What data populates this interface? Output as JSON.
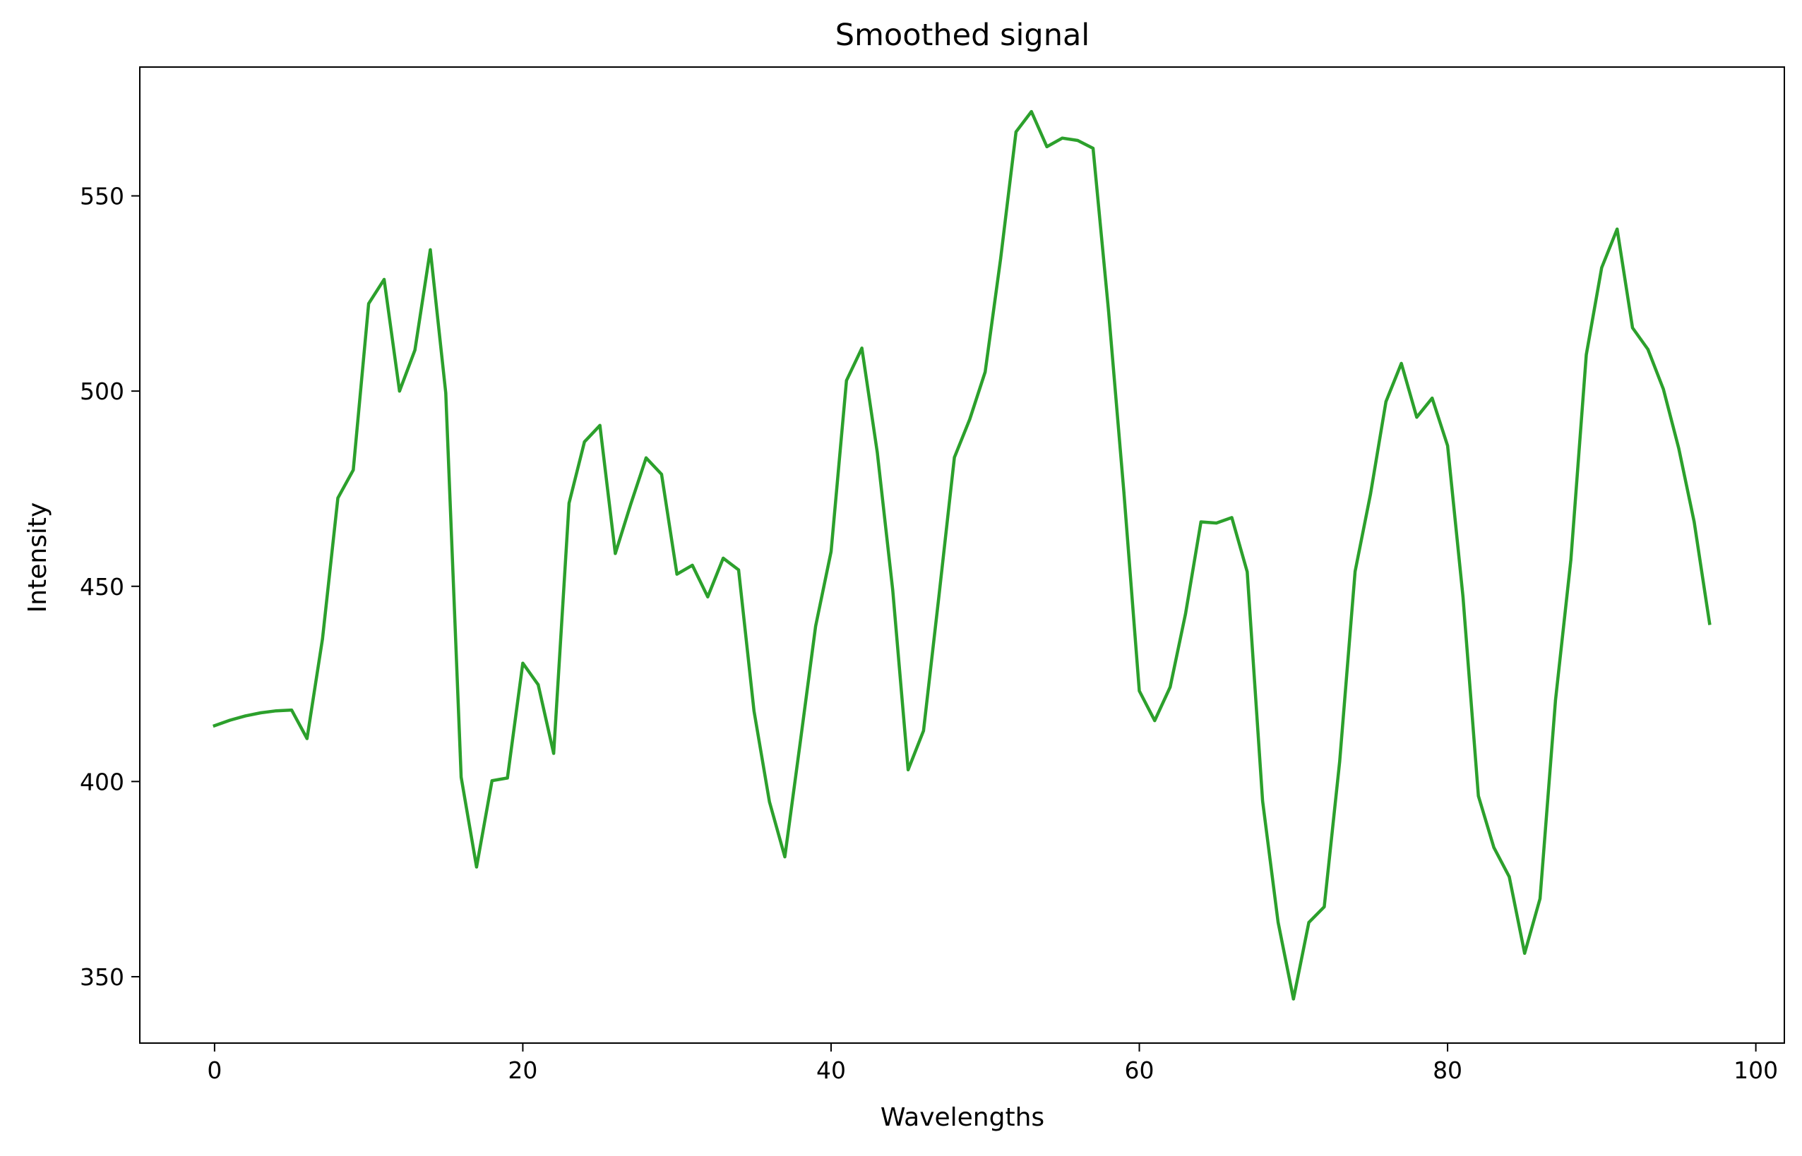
{
  "chart_data": {
    "type": "line",
    "title": "Smoothed signal",
    "xlabel": "Wavelengths",
    "ylabel": "Intensity",
    "xlim": [
      -4.85,
      101.85
    ],
    "ylim": [
      333,
      583
    ],
    "xticks": [
      0,
      20,
      40,
      60,
      80,
      100
    ],
    "yticks": [
      350,
      400,
      450,
      500,
      550
    ],
    "grid": false,
    "line_color": "#2ca02c",
    "series": [
      {
        "x": [
          0,
          1,
          2,
          3,
          4,
          5,
          6,
          7,
          8,
          9,
          10,
          11,
          12,
          13,
          14,
          15,
          16,
          17,
          18,
          19,
          20,
          21,
          22,
          23,
          24,
          25,
          26,
          27,
          28,
          29,
          30,
          31,
          32,
          33,
          34,
          35,
          36,
          37,
          38,
          39,
          40,
          41,
          42,
          43,
          44,
          45,
          46,
          47,
          48,
          49,
          50,
          51,
          52,
          53,
          54,
          55,
          56,
          57,
          58,
          59,
          60,
          61,
          62,
          63,
          64,
          65,
          66,
          67,
          68,
          69,
          70,
          71,
          72,
          73,
          74,
          75,
          76,
          77,
          78,
          79,
          80,
          81,
          82,
          83,
          84,
          85,
          86,
          87,
          88,
          89,
          90,
          91,
          92,
          93,
          94,
          95,
          96,
          97
        ],
        "values": [
          414.3,
          415.7,
          416.8,
          417.6,
          418.1,
          418.3,
          411,
          436.5,
          472.6,
          479.8,
          522.4,
          528.6,
          500,
          510.5,
          536.2,
          499.5,
          401.1,
          378.1,
          400.2,
          400.9,
          430.3,
          424.8,
          407.2,
          471.3,
          487,
          491.2,
          458.4,
          471,
          482.9,
          478.7,
          453.1,
          455.4,
          447.3,
          457.2,
          454.2,
          418.1,
          394.8,
          380.7,
          410,
          439.8,
          458.9,
          502.7,
          511,
          484.3,
          449,
          403,
          413,
          447.6,
          483,
          492.8,
          504.9,
          533.9,
          566.4,
          571.6,
          562.6,
          564.8,
          564.2,
          562.2,
          520.6,
          474,
          423.2,
          415.6,
          424.2,
          443,
          466.5,
          466.2,
          467.6,
          453.7,
          395,
          364,
          344.3,
          363.9,
          367.9,
          405.2,
          453.8,
          473.6,
          497.3,
          507.1,
          493.3,
          498.2,
          486,
          447.3,
          396.3,
          383.1,
          375.6,
          356,
          370,
          420.8,
          456.8,
          509.3,
          531.6,
          541.5,
          516.2,
          510.7,
          500.5,
          485.3,
          466.5,
          440.5
        ]
      }
    ]
  }
}
